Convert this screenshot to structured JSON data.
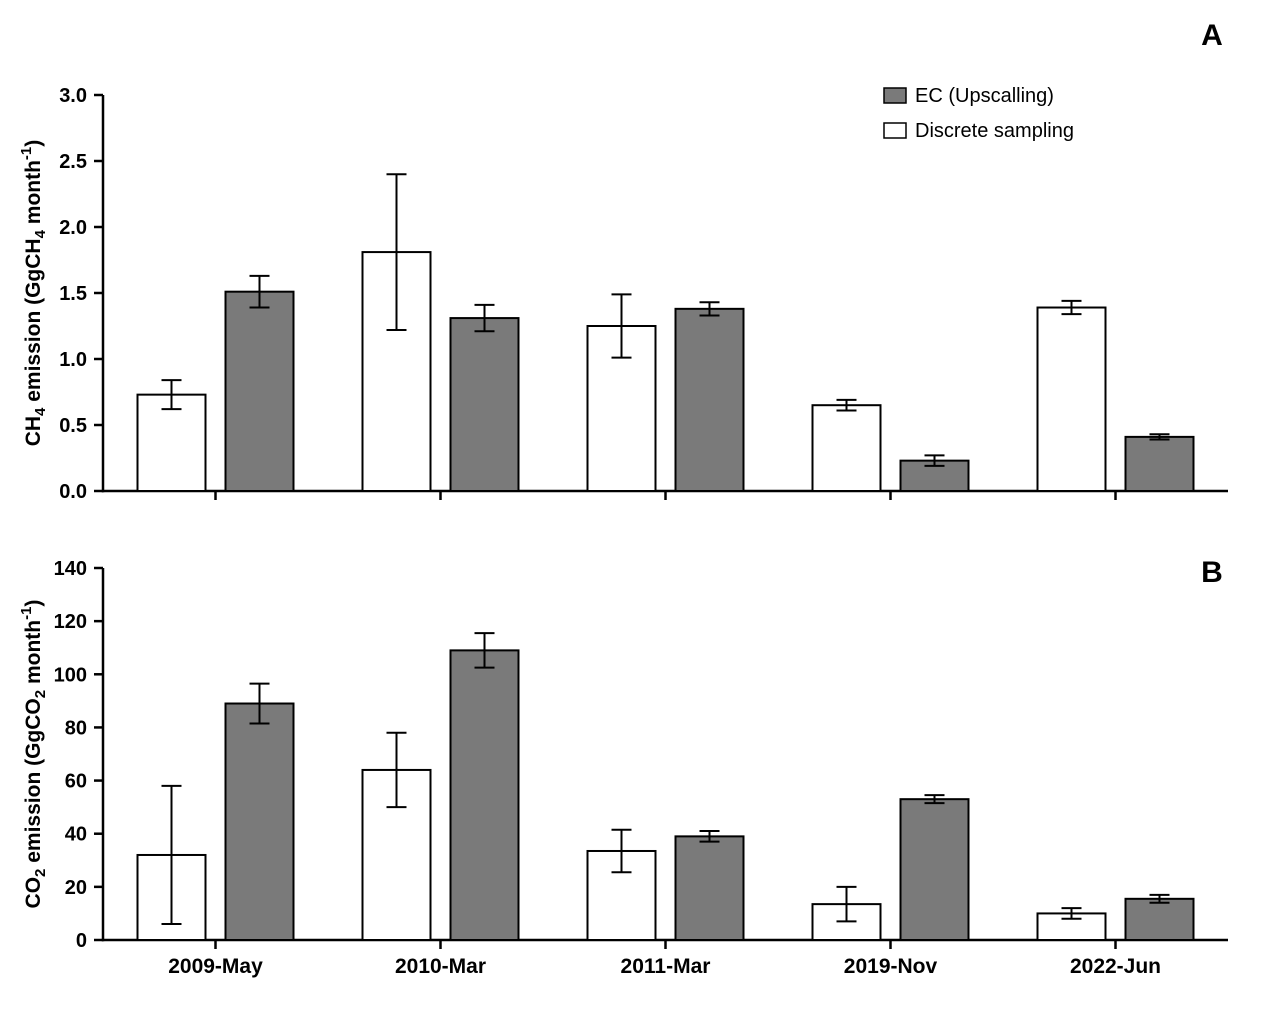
{
  "figure": {
    "background": "#ffffff",
    "axis_color": "#000000",
    "panel_labels": [
      "A",
      "B"
    ]
  },
  "chart_data": [
    {
      "type": "bar",
      "panel_label": "A",
      "title": "",
      "xlabel": "",
      "ylabel": "CH₄ emission (GgCH₄ month⁻¹)",
      "ylabel_parts": [
        {
          "t": "CH"
        },
        {
          "t": "4",
          "sub": true
        },
        {
          "t": " emission (GgCH"
        },
        {
          "t": "4",
          "sub": true
        },
        {
          "t": " month"
        },
        {
          "t": "-1",
          "sup": true
        },
        {
          "t": ")"
        }
      ],
      "ylim": [
        0,
        3.0
      ],
      "yticks": [
        {
          "v": 0.0,
          "label": "0.0"
        },
        {
          "v": 0.5,
          "label": "0.5"
        },
        {
          "v": 1.0,
          "label": "1.0"
        },
        {
          "v": 1.5,
          "label": "1.5"
        },
        {
          "v": 2.0,
          "label": "2.0"
        },
        {
          "v": 2.5,
          "label": "2.5"
        },
        {
          "v": 3.0,
          "label": "3.0"
        }
      ],
      "categories": [
        "2009-May",
        "2010-Mar",
        "2011-Mar",
        "2019-Nov",
        "2022-Jun"
      ],
      "show_category_labels": false,
      "grid": false,
      "series": [
        {
          "name": "Discrete sampling",
          "fill": "#ffffff",
          "values": [
            0.73,
            1.81,
            1.25,
            0.65,
            1.39
          ],
          "errors": [
            0.11,
            0.59,
            0.24,
            0.04,
            0.05
          ]
        },
        {
          "name": "EC (Upscalling)",
          "fill": "#7a7a7a",
          "values": [
            1.51,
            1.31,
            1.38,
            0.23,
            0.41
          ],
          "errors": [
            0.12,
            0.1,
            0.05,
            0.04,
            0.02
          ]
        }
      ],
      "legend": {
        "position": "top-right",
        "order": [
          1,
          0
        ]
      }
    },
    {
      "type": "bar",
      "panel_label": "B",
      "title": "",
      "xlabel": "",
      "ylabel": "CO₂ emission (GgCO₂ month⁻¹)",
      "ylabel_parts": [
        {
          "t": "CO"
        },
        {
          "t": "2",
          "sub": true
        },
        {
          "t": " emission (GgCO"
        },
        {
          "t": "2",
          "sub": true
        },
        {
          "t": " month"
        },
        {
          "t": "-1",
          "sup": true
        },
        {
          "t": ")"
        }
      ],
      "ylim": [
        0,
        140
      ],
      "yticks": [
        {
          "v": 0,
          "label": "0"
        },
        {
          "v": 20,
          "label": "20"
        },
        {
          "v": 40,
          "label": "40"
        },
        {
          "v": 60,
          "label": "60"
        },
        {
          "v": 80,
          "label": "80"
        },
        {
          "v": 100,
          "label": "100"
        },
        {
          "v": 120,
          "label": "120"
        },
        {
          "v": 140,
          "label": "140"
        }
      ],
      "categories": [
        "2009-May",
        "2010-Mar",
        "2011-Mar",
        "2019-Nov",
        "2022-Jun"
      ],
      "show_category_labels": true,
      "grid": false,
      "series": [
        {
          "name": "Discrete sampling",
          "fill": "#ffffff",
          "values": [
            32,
            64,
            33.5,
            13.5,
            10
          ],
          "errors": [
            26,
            14,
            8,
            6.5,
            2
          ]
        },
        {
          "name": "EC (Upscalling)",
          "fill": "#7a7a7a",
          "values": [
            89,
            109,
            39,
            53,
            15.5
          ],
          "errors": [
            7.5,
            6.5,
            2,
            1.5,
            1.5
          ]
        }
      ],
      "legend": null
    }
  ]
}
